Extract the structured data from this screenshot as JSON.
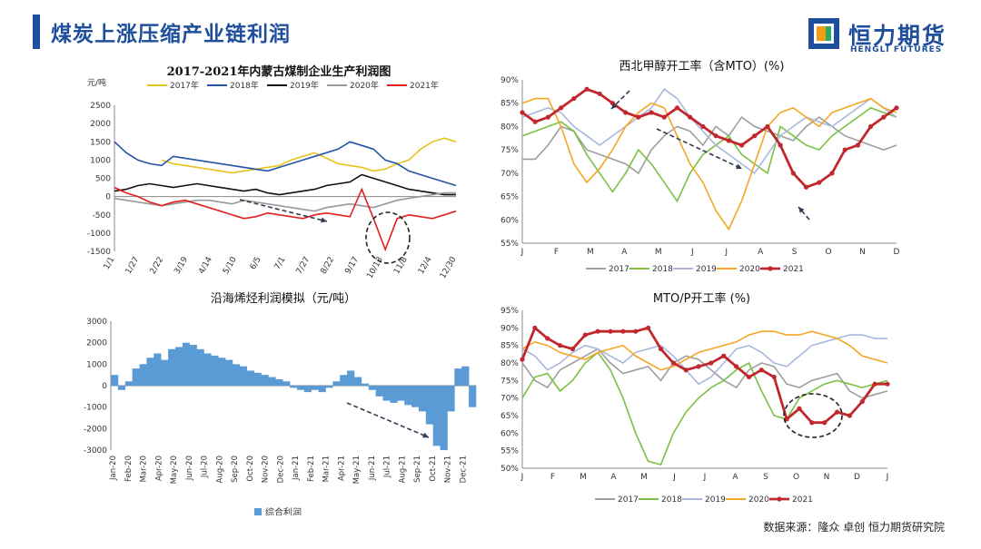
{
  "header": {
    "title": "煤炭上涨压缩产业链利润"
  },
  "logo": {
    "cn": "恒力期货",
    "en": "HENGLI FUTURES",
    "colors": [
      "#1f4e9c",
      "#f39c12",
      "#27ae60"
    ]
  },
  "source_text": "数据来源：隆众  卓创  恒力期货研究院",
  "chart_data": [
    {
      "type": "line",
      "title": "2017-2021年内蒙古煤制企业生产利润图",
      "ylabel": "元/吨",
      "ylim": [
        -1500,
        2500
      ],
      "yticks": [
        "2500",
        "2000",
        "1500",
        "1000",
        "500",
        "0",
        "-500",
        "-1000",
        "-1500"
      ],
      "x_labels": [
        "1/1",
        "1/27",
        "2/22",
        "3/19",
        "4/14",
        "5/10",
        "6/5",
        "7/1",
        "7/27",
        "8/22",
        "9/17",
        "10/13",
        "11/8",
        "12/4",
        "12/30"
      ],
      "series": [
        {
          "name": "2017年",
          "color": "#e8c31a",
          "values": [
            null,
            null,
            null,
            null,
            1000,
            900,
            850,
            800,
            750,
            700,
            650,
            700,
            750,
            800,
            850,
            1000,
            1100,
            1200,
            1050,
            900,
            850,
            800,
            700,
            750,
            900,
            1000,
            1300,
            1500,
            1600,
            1500
          ]
        },
        {
          "name": "2018年",
          "color": "#2453a6",
          "values": [
            1500,
            1200,
            1000,
            900,
            850,
            1100,
            1050,
            1000,
            950,
            900,
            850,
            800,
            750,
            700,
            800,
            900,
            1000,
            1100,
            1200,
            1300,
            1500,
            1400,
            1300,
            1000,
            900,
            700,
            600,
            500,
            400,
            300
          ]
        },
        {
          "name": "2019年",
          "color": "#111111",
          "values": [
            150,
            200,
            300,
            350,
            300,
            250,
            300,
            350,
            300,
            250,
            200,
            150,
            200,
            100,
            50,
            100,
            150,
            200,
            300,
            350,
            400,
            600,
            500,
            400,
            300,
            200,
            150,
            100,
            50,
            50
          ]
        },
        {
          "name": "2020年",
          "color": "#999999",
          "values": [
            -50,
            -100,
            -150,
            -200,
            -250,
            -200,
            -150,
            -100,
            -100,
            -150,
            -200,
            -100,
            -150,
            -200,
            -250,
            -300,
            -350,
            -400,
            -300,
            -250,
            -200,
            -250,
            -300,
            -200,
            -100,
            -50,
            0,
            50,
            100,
            100
          ]
        },
        {
          "name": "2021年",
          "color": "#e02020",
          "values": [
            250,
            100,
            0,
            -150,
            -250,
            -150,
            -100,
            -200,
            -300,
            -400,
            -500,
            -600,
            -550,
            -450,
            -500,
            -550,
            -600,
            -500,
            -450,
            -500,
            -550,
            200,
            -600,
            -1450,
            -600,
            -500,
            -550,
            -600,
            -500,
            -400
          ]
        }
      ],
      "annotations": [
        "arrow: downtrend",
        "circle: 2021 low"
      ]
    },
    {
      "type": "line",
      "title": "西北甲醇开工率（含MTO）(%)",
      "ylim": [
        55,
        90
      ],
      "yticks": [
        "90%",
        "85%",
        "80%",
        "75%",
        "70%",
        "65%",
        "60%",
        "55%"
      ],
      "x_labels": [
        "J",
        "F",
        "M",
        "A",
        "M",
        "J",
        "J",
        "A",
        "S",
        "O",
        "N",
        "D"
      ],
      "series": [
        {
          "name": "2017",
          "color": "#9e9e9e",
          "values": [
            73,
            73,
            76,
            80,
            79,
            75,
            74,
            73,
            72,
            70,
            75,
            78,
            80,
            79,
            76,
            80,
            78,
            82,
            80,
            79,
            78,
            77,
            80,
            82,
            80,
            78,
            77,
            76,
            75,
            76
          ]
        },
        {
          "name": "2018",
          "color": "#7ac142",
          "values": [
            78,
            79,
            80,
            81,
            79,
            74,
            70,
            66,
            70,
            75,
            72,
            68,
            64,
            70,
            74,
            76,
            78,
            74,
            72,
            70,
            80,
            78,
            76,
            75,
            78,
            80,
            82,
            84,
            83,
            82
          ]
        },
        {
          "name": "2019",
          "color": "#a9b7dc",
          "values": [
            82,
            83,
            84,
            83,
            80,
            78,
            76,
            78,
            80,
            82,
            84,
            88,
            86,
            82,
            79,
            76,
            74,
            72,
            70,
            74,
            78,
            80,
            82,
            81,
            80,
            82,
            84,
            86,
            84,
            82
          ]
        },
        {
          "name": "2020",
          "color": "#f5a623",
          "values": [
            85,
            86,
            86,
            80,
            72,
            68,
            71,
            75,
            80,
            83,
            85,
            84,
            78,
            72,
            68,
            62,
            58,
            64,
            72,
            80,
            83,
            84,
            82,
            80,
            83,
            84,
            85,
            86,
            84,
            83
          ]
        },
        {
          "name": "2021",
          "color": "#c0282e",
          "values": [
            83,
            81,
            82,
            84,
            86,
            88,
            87,
            85,
            83,
            82,
            83,
            82,
            84,
            82,
            80,
            78,
            77,
            76,
            78,
            80,
            76,
            70,
            67,
            68,
            70,
            75,
            76,
            80,
            82,
            84
          ]
        }
      ]
    },
    {
      "type": "area",
      "title": "沿海烯烃利润模拟（元/吨）",
      "ylim": [
        -3000,
        3000
      ],
      "yticks": [
        "3000",
        "2000",
        "1000",
        "0",
        "-1000",
        "-2000",
        "-3000"
      ],
      "x_labels": [
        "Jan-20",
        "Feb-20",
        "Mar-20",
        "Apr-20",
        "May-20",
        "Jun-20",
        "Jul-20",
        "Aug-20",
        "Sep-20",
        "Oct-20",
        "Nov-20",
        "Dec-20",
        "Jan-21",
        "Feb-21",
        "Mar-21",
        "Apr-21",
        "May-21",
        "Jun-21",
        "Jul-21",
        "Aug-21",
        "Sep-21",
        "Oct-21",
        "Nov-21",
        "Dec-21"
      ],
      "series": [
        {
          "name": "综合利润",
          "color": "#5b9bd5",
          "values": [
            500,
            -200,
            200,
            800,
            1000,
            1300,
            1500,
            1200,
            1700,
            1800,
            2000,
            1900,
            1700,
            1500,
            1400,
            1300,
            1200,
            1000,
            900,
            700,
            600,
            500,
            400,
            300,
            200,
            -100,
            -200,
            -300,
            -200,
            -300,
            -100,
            200,
            500,
            700,
            400,
            100,
            -200,
            -500,
            -700,
            -800,
            -700,
            -900,
            -1000,
            -1200,
            -1800,
            -2800,
            -3000,
            -1200,
            800,
            900,
            -1000
          ]
        }
      ],
      "annotations": [
        "arrow: downtrend"
      ]
    },
    {
      "type": "line",
      "title": "MTO/P开工率 (%)",
      "ylim": [
        50,
        95
      ],
      "yticks": [
        "95%",
        "90%",
        "85%",
        "80%",
        "75%",
        "70%",
        "65%",
        "60%",
        "55%",
        "50%"
      ],
      "x_labels": [
        "J",
        "F",
        "M",
        "A",
        "M",
        "J",
        "J",
        "A",
        "S",
        "O",
        "N",
        "D",
        "J"
      ],
      "series": [
        {
          "name": "2017",
          "color": "#9e9e9e",
          "values": [
            80,
            75,
            73,
            78,
            80,
            82,
            84,
            80,
            77,
            78,
            79,
            75,
            80,
            82,
            81,
            78,
            75,
            73,
            78,
            80,
            79,
            74,
            73,
            75,
            76,
            77,
            72,
            70,
            71,
            72
          ]
        },
        {
          "name": "2018",
          "color": "#7ac142",
          "values": [
            70,
            76,
            77,
            72,
            75,
            80,
            83,
            78,
            70,
            60,
            52,
            51,
            60,
            66,
            70,
            73,
            75,
            78,
            80,
            72,
            65,
            64,
            70,
            72,
            74,
            75,
            74,
            73,
            74,
            75
          ]
        },
        {
          "name": "2019",
          "color": "#a9b7dc",
          "values": [
            84,
            82,
            78,
            80,
            83,
            85,
            84,
            82,
            80,
            83,
            84,
            85,
            82,
            78,
            74,
            76,
            80,
            84,
            85,
            83,
            80,
            79,
            82,
            85,
            86,
            87,
            88,
            88,
            87,
            87
          ]
        },
        {
          "name": "2020",
          "color": "#f5a623",
          "values": [
            84,
            86,
            85,
            83,
            82,
            81,
            83,
            84,
            85,
            82,
            80,
            78,
            79,
            81,
            83,
            84,
            85,
            86,
            88,
            89,
            89,
            88,
            88,
            89,
            88,
            87,
            85,
            82,
            81,
            80
          ]
        },
        {
          "name": "2021",
          "color": "#c0282e",
          "values": [
            81,
            90,
            87,
            85,
            84,
            88,
            89,
            89,
            89,
            89,
            90,
            84,
            80,
            78,
            79,
            80,
            82,
            79,
            76,
            78,
            76,
            64,
            67,
            63,
            63,
            66,
            65,
            69,
            74,
            74
          ]
        }
      ],
      "annotations": [
        "circle: 2021 low"
      ]
    }
  ]
}
